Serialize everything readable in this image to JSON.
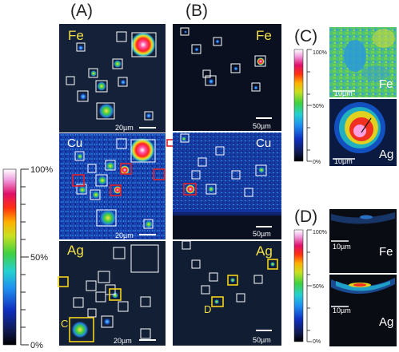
{
  "panels": {
    "A": "(A)",
    "B": "(B)",
    "C": "(C)",
    "D": "(D)"
  },
  "elements": {
    "fe": "Fe",
    "cu": "Cu",
    "ag": "Ag"
  },
  "scales": {
    "s20": "20µm",
    "s50": "50µm",
    "s10": "10µm"
  },
  "colorbar": {
    "max": "100%",
    "mid": "50%",
    "min": "0%"
  },
  "sublabels": {
    "c": "C",
    "d": "D"
  },
  "colors": {
    "white_box": "#ffffff",
    "red_box": "#e0202a",
    "yellow_box": "#f2d21a"
  }
}
